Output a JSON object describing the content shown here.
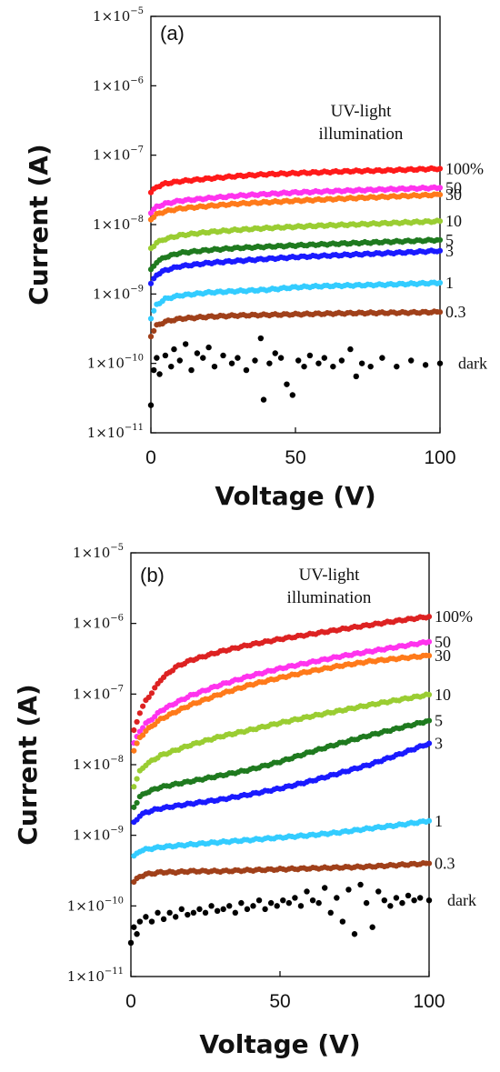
{
  "chart_data": [
    {
      "type": "scatter",
      "panel_label": "(a)",
      "xlabel": "Voltage (V)",
      "ylabel": "Current (A)",
      "yscale": "log",
      "xlim": [
        0,
        100
      ],
      "ylim": [
        1e-11,
        1e-05
      ],
      "xticks": [
        "0",
        "50",
        "100"
      ],
      "yticks": [
        {
          "base": "1×10",
          "exp": "−5"
        },
        {
          "base": "1×10",
          "exp": "−6"
        },
        {
          "base": "1×10",
          "exp": "−7"
        },
        {
          "base": "1×10",
          "exp": "−8"
        },
        {
          "base": "1×10",
          "exp": "−9"
        },
        {
          "base": "1×10",
          "exp": "−10"
        },
        {
          "base": "1×10",
          "exp": "−11"
        }
      ],
      "annotation": [
        "UV-light",
        "illumination"
      ],
      "series": [
        {
          "name": "100%",
          "color": "#ff1a1a",
          "x": [
            0,
            2,
            5,
            10,
            20,
            30,
            40,
            50,
            60,
            70,
            80,
            90,
            100
          ],
          "y": [
            2.9e-08,
            3.5e-08,
            3.9e-08,
            4.2e-08,
            4.6e-08,
            5e-08,
            5.3e-08,
            5.5e-08,
            5.7e-08,
            5.9e-08,
            6e-08,
            6.2e-08,
            6.4e-08
          ]
        },
        {
          "name": "50",
          "color": "#ff33ee",
          "x": [
            0,
            2,
            5,
            10,
            20,
            30,
            40,
            50,
            60,
            70,
            80,
            90,
            100
          ],
          "y": [
            1.5e-08,
            1.8e-08,
            2e-08,
            2.2e-08,
            2.4e-08,
            2.6e-08,
            2.75e-08,
            2.9e-08,
            3e-08,
            3.1e-08,
            3.2e-08,
            3.3e-08,
            3.4e-08
          ]
        },
        {
          "name": "30",
          "color": "#ff7a1a",
          "x": [
            0,
            2,
            5,
            10,
            20,
            30,
            40,
            50,
            60,
            70,
            80,
            90,
            100
          ],
          "y": [
            1.2e-08,
            1.4e-08,
            1.55e-08,
            1.7e-08,
            1.85e-08,
            2e-08,
            2.1e-08,
            2.2e-08,
            2.3e-08,
            2.4e-08,
            2.5e-08,
            2.6e-08,
            2.7e-08
          ]
        },
        {
          "name": "10",
          "color": "#9acd32",
          "x": [
            0,
            2,
            5,
            10,
            20,
            30,
            40,
            50,
            60,
            70,
            80,
            90,
            100
          ],
          "y": [
            4.5e-09,
            5.5e-09,
            6.2e-09,
            7e-09,
            7.8e-09,
            8.4e-09,
            8.9e-09,
            9.3e-09,
            9.7e-09,
            1e-08,
            1.04e-08,
            1.08e-08,
            1.12e-08
          ]
        },
        {
          "name": "5",
          "color": "#1f7a1f",
          "x": [
            0,
            2,
            5,
            10,
            20,
            30,
            40,
            50,
            60,
            70,
            80,
            90,
            100
          ],
          "y": [
            2.2e-09,
            2.9e-09,
            3.4e-09,
            3.9e-09,
            4.3e-09,
            4.6e-09,
            4.8e-09,
            5e-09,
            5.2e-09,
            5.4e-09,
            5.6e-09,
            5.8e-09,
            6e-09
          ]
        },
        {
          "name": "3",
          "color": "#1a1aff",
          "x": [
            0,
            2,
            5,
            10,
            20,
            30,
            40,
            50,
            60,
            70,
            80,
            90,
            100
          ],
          "y": [
            1.4e-09,
            1.9e-09,
            2.2e-09,
            2.5e-09,
            2.8e-09,
            3e-09,
            3.2e-09,
            3.4e-09,
            3.55e-09,
            3.7e-09,
            3.85e-09,
            4e-09,
            4.2e-09
          ]
        },
        {
          "name": "1",
          "color": "#33ccff",
          "x": [
            0,
            2,
            5,
            10,
            20,
            30,
            40,
            50,
            60,
            70,
            80,
            90,
            100
          ],
          "y": [
            4.5e-10,
            7e-10,
            8.5e-10,
            9.5e-10,
            1.05e-09,
            1.1e-09,
            1.15e-09,
            1.25e-09,
            1.3e-09,
            1.33e-09,
            1.36e-09,
            1.4e-09,
            1.45e-09
          ]
        },
        {
          "name": "0.3",
          "color": "#a0401a",
          "x": [
            0,
            2,
            5,
            10,
            20,
            30,
            40,
            50,
            60,
            70,
            80,
            90,
            100
          ],
          "y": [
            2.5e-10,
            3.5e-10,
            4e-10,
            4.4e-10,
            4.7e-10,
            4.9e-10,
            5e-10,
            5.1e-10,
            5.2e-10,
            5.3e-10,
            5.35e-10,
            5.4e-10,
            5.5e-10
          ]
        },
        {
          "name": "dark",
          "color": "#000000",
          "x": [
            0,
            1,
            2,
            3,
            5,
            7,
            8,
            10,
            12,
            14,
            16,
            18,
            20,
            22,
            25,
            28,
            30,
            33,
            36,
            38,
            39,
            41,
            43,
            45,
            47,
            49,
            51,
            53,
            55,
            58,
            60,
            63,
            66,
            69,
            71,
            73,
            76,
            80,
            85,
            90,
            95,
            100
          ],
          "y": [
            2.5e-11,
            8e-11,
            1.2e-10,
            7e-11,
            1.3e-10,
            9e-11,
            1.6e-10,
            1.1e-10,
            1.9e-10,
            8e-11,
            1.4e-10,
            1.2e-10,
            1.7e-10,
            9e-11,
            1.3e-10,
            1e-10,
            1.2e-10,
            8e-11,
            1.1e-10,
            2.3e-10,
            3e-11,
            1e-10,
            1.4e-10,
            1.2e-10,
            5e-11,
            3.5e-11,
            1.1e-10,
            9e-11,
            1.3e-10,
            1e-10,
            1.2e-10,
            9e-11,
            1.1e-10,
            1.6e-10,
            6.5e-11,
            1e-10,
            9e-11,
            1.2e-10,
            9e-11,
            1.1e-10,
            9.5e-11,
            1e-10
          ]
        }
      ]
    },
    {
      "type": "scatter",
      "panel_label": "(b)",
      "xlabel": "Voltage (V)",
      "ylabel": "Current (A)",
      "yscale": "log",
      "xlim": [
        0,
        100
      ],
      "ylim": [
        1e-11,
        1e-05
      ],
      "xticks": [
        "0",
        "50",
        "100"
      ],
      "yticks": [
        {
          "base": "1×10",
          "exp": "−5"
        },
        {
          "base": "1×10",
          "exp": "−6"
        },
        {
          "base": "1×10",
          "exp": "−7"
        },
        {
          "base": "1×10",
          "exp": "−8"
        },
        {
          "base": "1×10",
          "exp": "−9"
        },
        {
          "base": "1×10",
          "exp": "−10"
        },
        {
          "base": "1×10",
          "exp": "−11"
        }
      ],
      "annotation": [
        "UV-light",
        "illumination"
      ],
      "series": [
        {
          "name": "100%",
          "color": "#dd2222",
          "x": [
            1,
            3,
            5,
            8,
            10,
            15,
            20,
            30,
            40,
            50,
            60,
            70,
            80,
            90,
            100
          ],
          "y": [
            3e-08,
            5.5e-08,
            8e-08,
            1.2e-07,
            1.6e-07,
            2.4e-07,
            3e-07,
            4e-07,
            5e-07,
            6e-07,
            7e-07,
            8.2e-07,
            9.5e-07,
            1.1e-06,
            1.25e-06
          ]
        },
        {
          "name": "50",
          "color": "#ff33ee",
          "x": [
            1,
            3,
            5,
            8,
            10,
            15,
            20,
            30,
            40,
            50,
            60,
            70,
            80,
            90,
            100
          ],
          "y": [
            2e-08,
            3e-08,
            3.8e-08,
            4.8e-08,
            5.8e-08,
            7.5e-08,
            9.5e-08,
            1.35e-07,
            1.8e-07,
            2.3e-07,
            2.8e-07,
            3.4e-07,
            4e-07,
            4.7e-07,
            5.5e-07
          ]
        },
        {
          "name": "30",
          "color": "#ff7a1a",
          "x": [
            1,
            3,
            5,
            8,
            10,
            15,
            20,
            30,
            40,
            50,
            60,
            70,
            80,
            90,
            100
          ],
          "y": [
            1.6e-08,
            2.4e-08,
            3e-08,
            3.8e-08,
            4.4e-08,
            5.6e-08,
            7e-08,
            1e-07,
            1.35e-07,
            1.7e-07,
            2.1e-07,
            2.5e-07,
            2.9e-07,
            3.2e-07,
            3.5e-07
          ]
        },
        {
          "name": "10",
          "color": "#9acd32",
          "x": [
            1,
            3,
            5,
            8,
            10,
            15,
            20,
            30,
            40,
            50,
            60,
            70,
            80,
            90,
            100
          ],
          "y": [
            5e-09,
            8e-09,
            1e-08,
            1.2e-08,
            1.35e-08,
            1.6e-08,
            1.9e-08,
            2.5e-08,
            3.1e-08,
            3.9e-08,
            4.8e-08,
            5.8e-08,
            7e-08,
            8.3e-08,
            9.8e-08
          ]
        },
        {
          "name": "5",
          "color": "#1f7a1f",
          "x": [
            1,
            3,
            5,
            8,
            10,
            15,
            20,
            30,
            40,
            50,
            60,
            70,
            80,
            90,
            100
          ],
          "y": [
            2.5e-09,
            3.5e-09,
            4e-09,
            4.5e-09,
            4.8e-09,
            5.3e-09,
            5.8e-09,
            7e-09,
            8.5e-09,
            1.1e-08,
            1.5e-08,
            2e-08,
            2.6e-08,
            3.3e-08,
            4.2e-08
          ]
        },
        {
          "name": "3",
          "color": "#1a1aff",
          "x": [
            1,
            3,
            5,
            8,
            10,
            15,
            20,
            30,
            40,
            50,
            60,
            70,
            80,
            90,
            100
          ],
          "y": [
            1.5e-09,
            1.9e-09,
            2.1e-09,
            2.3e-09,
            2.4e-09,
            2.6e-09,
            2.8e-09,
            3.2e-09,
            3.8e-09,
            4.6e-09,
            5.8e-09,
            7.6e-09,
            1e-08,
            1.4e-08,
            2e-08
          ]
        },
        {
          "name": "1",
          "color": "#33ccff",
          "x": [
            1,
            3,
            5,
            8,
            10,
            15,
            20,
            30,
            40,
            50,
            60,
            70,
            80,
            90,
            100
          ],
          "y": [
            5e-10,
            6e-10,
            6.3e-10,
            6.6e-10,
            6.8e-10,
            7.1e-10,
            7.4e-10,
            8e-10,
            8.6e-10,
            9.3e-10,
            1e-09,
            1.1e-09,
            1.25e-09,
            1.4e-09,
            1.6e-09
          ]
        },
        {
          "name": "0.3",
          "color": "#a0401a",
          "x": [
            1,
            3,
            5,
            8,
            10,
            15,
            20,
            30,
            40,
            50,
            60,
            70,
            80,
            90,
            100
          ],
          "y": [
            2.2e-10,
            2.6e-10,
            2.8e-10,
            2.9e-10,
            3e-10,
            3e-10,
            3.1e-10,
            3.1e-10,
            3.2e-10,
            3.3e-10,
            3.4e-10,
            3.5e-10,
            3.6e-10,
            3.8e-10,
            4e-10
          ]
        },
        {
          "name": "dark",
          "color": "#000000",
          "x": [
            0,
            1,
            2,
            3,
            5,
            7,
            9,
            11,
            13,
            15,
            17,
            19,
            21,
            23,
            25,
            27,
            29,
            31,
            33,
            35,
            37,
            39,
            41,
            43,
            45,
            47,
            49,
            51,
            53,
            55,
            57,
            59,
            61,
            63,
            65,
            67,
            69,
            71,
            73,
            75,
            77,
            79,
            81,
            83,
            85,
            87,
            89,
            91,
            93,
            95,
            97,
            100
          ],
          "y": [
            3e-11,
            5e-11,
            4e-11,
            6e-11,
            7e-11,
            6e-11,
            8e-11,
            6.5e-11,
            8e-11,
            7e-11,
            9e-11,
            7.5e-11,
            8e-11,
            9e-11,
            8e-11,
            1e-10,
            8.5e-11,
            9e-11,
            1e-10,
            8e-11,
            1.1e-10,
            9e-11,
            1e-10,
            1.2e-10,
            9e-11,
            1.1e-10,
            1e-10,
            1.2e-10,
            1.1e-10,
            1.3e-10,
            1e-10,
            1.6e-10,
            1.2e-10,
            1.1e-10,
            1.8e-10,
            8e-11,
            1.3e-10,
            6e-11,
            1.7e-10,
            4e-11,
            2e-10,
            1.1e-10,
            5e-11,
            1.6e-10,
            1.2e-10,
            1e-10,
            1.3e-10,
            1.1e-10,
            1.4e-10,
            1.2e-10,
            1.3e-10,
            1.2e-10
          ]
        }
      ]
    }
  ]
}
